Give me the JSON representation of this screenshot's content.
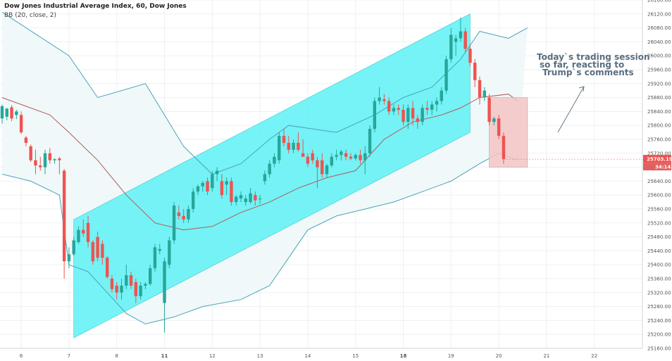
{
  "header": {
    "title": "Dow Jones Industrial Average Index, 60, Dow Jones",
    "indicator": "BB (20, close, 2)"
  },
  "colors": {
    "up": "#26a69a",
    "down": "#ef5350",
    "channel_fill": "#5ef1f5",
    "box_fill": "#f4c4c4",
    "band_line": "#4aa3b8",
    "band_fill": "#eef7f8",
    "basis_line": "#b15a5a",
    "price_tag": "#ef5350",
    "grid": "#eef0f2"
  },
  "chart_data": {
    "type": "candlestick",
    "title": "Dow Jones Industrial Average Index, 60, Dow Jones",
    "interval": "60",
    "ylim": [
      25160,
      26160
    ],
    "y_ticks": [
      25160,
      25200,
      25240,
      25280,
      25320,
      25360,
      25400,
      25440,
      25480,
      25520,
      25560,
      25600,
      25640,
      25680,
      25720,
      25760,
      25800,
      25840,
      25880,
      25920,
      25960,
      26000,
      26040,
      26080,
      26120,
      26160
    ],
    "x_ticks": [
      {
        "i": 4,
        "label": "6",
        "bold": false
      },
      {
        "i": 14,
        "label": "7",
        "bold": false
      },
      {
        "i": 24,
        "label": "8",
        "bold": false
      },
      {
        "i": 34,
        "label": "11",
        "bold": true
      },
      {
        "i": 44,
        "label": "12",
        "bold": false
      },
      {
        "i": 54,
        "label": "13",
        "bold": false
      },
      {
        "i": 64,
        "label": "14",
        "bold": false
      },
      {
        "i": 74,
        "label": "15",
        "bold": false
      },
      {
        "i": 84,
        "label": "18",
        "bold": true
      },
      {
        "i": 94,
        "label": "19",
        "bold": false
      },
      {
        "i": 104,
        "label": "20",
        "bold": false
      },
      {
        "i": 114,
        "label": "21",
        "bold": false
      },
      {
        "i": 124,
        "label": "22",
        "bold": false
      }
    ],
    "candles": [
      {
        "o": 25820,
        "h": 25860,
        "l": 25805,
        "c": 25855
      },
      {
        "o": 25825,
        "h": 25850,
        "l": 25815,
        "c": 25848
      },
      {
        "o": 25852,
        "h": 25858,
        "l": 25812,
        "c": 25820
      },
      {
        "o": 25830,
        "h": 25845,
        "l": 25818,
        "c": 25840
      },
      {
        "o": 25830,
        "h": 25840,
        "l": 25775,
        "c": 25780
      },
      {
        "o": 25765,
        "h": 25770,
        "l": 25740,
        "c": 25750
      },
      {
        "o": 25740,
        "h": 25745,
        "l": 25695,
        "c": 25700
      },
      {
        "o": 25700,
        "h": 25730,
        "l": 25660,
        "c": 25685
      },
      {
        "o": 25685,
        "h": 25710,
        "l": 25670,
        "c": 25680
      },
      {
        "o": 25680,
        "h": 25730,
        "l": 25660,
        "c": 25720
      },
      {
        "o": 25720,
        "h": 25735,
        "l": 25690,
        "c": 25700
      },
      {
        "o": 25700,
        "h": 25705,
        "l": 25690,
        "c": 25703
      },
      {
        "o": 25705,
        "h": 25710,
        "l": 25660,
        "c": 25700
      },
      {
        "o": 25670,
        "h": 25675,
        "l": 25360,
        "c": 25410
      },
      {
        "o": 25410,
        "h": 25450,
        "l": 25390,
        "c": 25430
      },
      {
        "o": 25430,
        "h": 25480,
        "l": 25425,
        "c": 25470
      },
      {
        "o": 25465,
        "h": 25510,
        "l": 25460,
        "c": 25500
      },
      {
        "o": 25500,
        "h": 25530,
        "l": 25480,
        "c": 25490
      },
      {
        "o": 25520,
        "h": 25540,
        "l": 25450,
        "c": 25465
      },
      {
        "o": 25465,
        "h": 25470,
        "l": 25400,
        "c": 25410
      },
      {
        "o": 25480,
        "h": 25495,
        "l": 25410,
        "c": 25420
      },
      {
        "o": 25460,
        "h": 25470,
        "l": 25400,
        "c": 25420
      },
      {
        "o": 25420,
        "h": 25425,
        "l": 25360,
        "c": 25365
      },
      {
        "o": 25360,
        "h": 25370,
        "l": 25320,
        "c": 25330
      },
      {
        "o": 25340,
        "h": 25350,
        "l": 25300,
        "c": 25320
      },
      {
        "o": 25320,
        "h": 25360,
        "l": 25300,
        "c": 25340
      },
      {
        "o": 25340,
        "h": 25400,
        "l": 25330,
        "c": 25370
      },
      {
        "o": 25370,
        "h": 25380,
        "l": 25330,
        "c": 25340
      },
      {
        "o": 25350,
        "h": 25360,
        "l": 25290,
        "c": 25310
      },
      {
        "o": 25310,
        "h": 25350,
        "l": 25300,
        "c": 25340
      },
      {
        "o": 25340,
        "h": 25350,
        "l": 25330,
        "c": 25345
      },
      {
        "o": 25345,
        "h": 25400,
        "l": 25340,
        "c": 25390
      },
      {
        "o": 25390,
        "h": 25460,
        "l": 25380,
        "c": 25450
      },
      {
        "o": 25440,
        "h": 25460,
        "l": 25430,
        "c": 25445
      },
      {
        "o": 25290,
        "h": 25420,
        "l": 25205,
        "c": 25410
      },
      {
        "o": 25400,
        "h": 25480,
        "l": 25390,
        "c": 25470
      },
      {
        "o": 25470,
        "h": 25580,
        "l": 25460,
        "c": 25570
      },
      {
        "o": 25550,
        "h": 25570,
        "l": 25530,
        "c": 25540
      },
      {
        "o": 25540,
        "h": 25560,
        "l": 25520,
        "c": 25530
      },
      {
        "o": 25530,
        "h": 25570,
        "l": 25520,
        "c": 25560
      },
      {
        "o": 25560,
        "h": 25620,
        "l": 25550,
        "c": 25610
      },
      {
        "o": 25610,
        "h": 25630,
        "l": 25600,
        "c": 25625
      },
      {
        "o": 25625,
        "h": 25640,
        "l": 25610,
        "c": 25635
      },
      {
        "o": 25640,
        "h": 25650,
        "l": 25600,
        "c": 25610
      },
      {
        "o": 25620,
        "h": 25670,
        "l": 25610,
        "c": 25660
      },
      {
        "o": 25660,
        "h": 25680,
        "l": 25640,
        "c": 25670
      },
      {
        "o": 25640,
        "h": 25660,
        "l": 25590,
        "c": 25600
      },
      {
        "o": 25630,
        "h": 25650,
        "l": 25600,
        "c": 25640
      },
      {
        "o": 25640,
        "h": 25650,
        "l": 25570,
        "c": 25580
      },
      {
        "o": 25580,
        "h": 25600,
        "l": 25570,
        "c": 25595
      },
      {
        "o": 25590,
        "h": 25610,
        "l": 25580,
        "c": 25600
      },
      {
        "o": 25580,
        "h": 25600,
        "l": 25570,
        "c": 25590
      },
      {
        "o": 25580,
        "h": 25620,
        "l": 25575,
        "c": 25605
      },
      {
        "o": 25600,
        "h": 25610,
        "l": 25570,
        "c": 25585
      },
      {
        "o": 25590,
        "h": 25600,
        "l": 25575,
        "c": 25590
      },
      {
        "o": 25640,
        "h": 25670,
        "l": 25630,
        "c": 25660
      },
      {
        "o": 25660,
        "h": 25700,
        "l": 25650,
        "c": 25690
      },
      {
        "o": 25690,
        "h": 25720,
        "l": 25680,
        "c": 25710
      },
      {
        "o": 25700,
        "h": 25780,
        "l": 25690,
        "c": 25770
      },
      {
        "o": 25770,
        "h": 25790,
        "l": 25740,
        "c": 25750
      },
      {
        "o": 25750,
        "h": 25770,
        "l": 25720,
        "c": 25730
      },
      {
        "o": 25730,
        "h": 25760,
        "l": 25720,
        "c": 25750
      },
      {
        "o": 25750,
        "h": 25780,
        "l": 25725,
        "c": 25730
      },
      {
        "o": 25720,
        "h": 25760,
        "l": 25710,
        "c": 25710
      },
      {
        "o": 25710,
        "h": 25720,
        "l": 25680,
        "c": 25690
      },
      {
        "o": 25720,
        "h": 25730,
        "l": 25690,
        "c": 25700
      },
      {
        "o": 25700,
        "h": 25710,
        "l": 25620,
        "c": 25680
      },
      {
        "o": 25700,
        "h": 25720,
        "l": 25650,
        "c": 25660
      },
      {
        "o": 25660,
        "h": 25690,
        "l": 25650,
        "c": 25685
      },
      {
        "o": 25685,
        "h": 25720,
        "l": 25680,
        "c": 25710
      },
      {
        "o": 25710,
        "h": 25730,
        "l": 25700,
        "c": 25715
      },
      {
        "o": 25715,
        "h": 25730,
        "l": 25700,
        "c": 25725
      },
      {
        "o": 25720,
        "h": 25730,
        "l": 25700,
        "c": 25710
      },
      {
        "o": 25710,
        "h": 25720,
        "l": 25700,
        "c": 25705
      },
      {
        "o": 25705,
        "h": 25720,
        "l": 25700,
        "c": 25715
      },
      {
        "o": 25715,
        "h": 25730,
        "l": 25690,
        "c": 25700
      },
      {
        "o": 25700,
        "h": 25740,
        "l": 25660,
        "c": 25720
      },
      {
        "o": 25720,
        "h": 25800,
        "l": 25710,
        "c": 25790
      },
      {
        "o": 25790,
        "h": 25880,
        "l": 25780,
        "c": 25870
      },
      {
        "o": 25870,
        "h": 25910,
        "l": 25860,
        "c": 25880
      },
      {
        "o": 25875,
        "h": 25890,
        "l": 25860,
        "c": 25870
      },
      {
        "o": 25870,
        "h": 25880,
        "l": 25830,
        "c": 25840
      },
      {
        "o": 25840,
        "h": 25860,
        "l": 25830,
        "c": 25850
      },
      {
        "o": 25850,
        "h": 25860,
        "l": 25830,
        "c": 25845
      },
      {
        "o": 25845,
        "h": 25860,
        "l": 25800,
        "c": 25810
      },
      {
        "o": 25810,
        "h": 25860,
        "l": 25790,
        "c": 25850
      },
      {
        "o": 25850,
        "h": 25870,
        "l": 25800,
        "c": 25820
      },
      {
        "o": 25820,
        "h": 25830,
        "l": 25790,
        "c": 25810
      },
      {
        "o": 25810,
        "h": 25860,
        "l": 25800,
        "c": 25850
      },
      {
        "o": 25850,
        "h": 25870,
        "l": 25830,
        "c": 25845
      },
      {
        "o": 25845,
        "h": 25870,
        "l": 25830,
        "c": 25860
      },
      {
        "o": 25860,
        "h": 25880,
        "l": 25840,
        "c": 25870
      },
      {
        "o": 25870,
        "h": 25910,
        "l": 25860,
        "c": 25900
      },
      {
        "o": 25900,
        "h": 26000,
        "l": 25890,
        "c": 25990
      },
      {
        "o": 25990,
        "h": 26080,
        "l": 25980,
        "c": 26060
      },
      {
        "o": 26040,
        "h": 26060,
        "l": 26000,
        "c": 26050
      },
      {
        "o": 26050,
        "h": 26110,
        "l": 26040,
        "c": 26070
      },
      {
        "o": 26070,
        "h": 26080,
        "l": 26010,
        "c": 26020
      },
      {
        "o": 26020,
        "h": 26030,
        "l": 25970,
        "c": 25980
      },
      {
        "o": 25980,
        "h": 25990,
        "l": 25910,
        "c": 25930
      },
      {
        "o": 25930,
        "h": 25940,
        "l": 25860,
        "c": 25880
      },
      {
        "o": 25880,
        "h": 25910,
        "l": 25870,
        "c": 25900
      },
      {
        "o": 25880,
        "h": 25890,
        "l": 25800,
        "c": 25810
      },
      {
        "o": 25810,
        "h": 25825,
        "l": 25800,
        "c": 25820
      },
      {
        "o": 25820,
        "h": 25830,
        "l": 25760,
        "c": 25770
      },
      {
        "o": 25770,
        "h": 25780,
        "l": 25690,
        "c": 25703
      }
    ],
    "bb_upper": [
      [
        0,
        26125
      ],
      [
        14,
        26000
      ],
      [
        20,
        25880
      ],
      [
        30,
        25920
      ],
      [
        38,
        25740
      ],
      [
        44,
        25660
      ],
      [
        50,
        25690
      ],
      [
        56,
        25760
      ],
      [
        60,
        25800
      ],
      [
        70,
        25780
      ],
      [
        78,
        25830
      ],
      [
        84,
        25880
      ],
      [
        90,
        25910
      ],
      [
        96,
        25990
      ],
      [
        100,
        26070
      ],
      [
        106,
        26050
      ],
      [
        110,
        26080
      ]
    ],
    "bb_basis": [
      [
        0,
        25880
      ],
      [
        10,
        25830
      ],
      [
        14,
        25780
      ],
      [
        20,
        25700
      ],
      [
        26,
        25600
      ],
      [
        32,
        25520
      ],
      [
        38,
        25500
      ],
      [
        44,
        25510
      ],
      [
        50,
        25550
      ],
      [
        56,
        25580
      ],
      [
        62,
        25620
      ],
      [
        68,
        25650
      ],
      [
        74,
        25670
      ],
      [
        80,
        25760
      ],
      [
        86,
        25810
      ],
      [
        92,
        25830
      ],
      [
        96,
        25850
      ],
      [
        100,
        25880
      ],
      [
        106,
        25890
      ],
      [
        108,
        25870
      ]
    ],
    "bb_lower": [
      [
        0,
        25660
      ],
      [
        6,
        25640
      ],
      [
        12,
        25600
      ],
      [
        14,
        25400
      ],
      [
        18,
        25380
      ],
      [
        22,
        25320
      ],
      [
        26,
        25260
      ],
      [
        30,
        25230
      ],
      [
        36,
        25250
      ],
      [
        42,
        25280
      ],
      [
        50,
        25300
      ],
      [
        56,
        25340
      ],
      [
        60,
        25420
      ],
      [
        64,
        25500
      ],
      [
        70,
        25540
      ],
      [
        76,
        25560
      ],
      [
        82,
        25580
      ],
      [
        88,
        25610
      ],
      [
        94,
        25640
      ],
      [
        100,
        25690
      ],
      [
        104,
        25720
      ],
      [
        108,
        25700
      ]
    ],
    "channel": {
      "p1": [
        [
          15,
          25190
        ],
        [
          98,
          25780
        ]
      ],
      "p2": [
        [
          15,
          25530
        ],
        [
          98,
          26120
        ]
      ]
    },
    "box": {
      "from": 102,
      "to": 110,
      "ymin": 25680,
      "ymax": 25880
    },
    "last_price": 25703.19,
    "last_price_label": "25703.19",
    "countdown": "34:14",
    "annotation": [
      "Today`s trading session",
      "so far, reacting to",
      "Trump`s comments"
    ]
  }
}
